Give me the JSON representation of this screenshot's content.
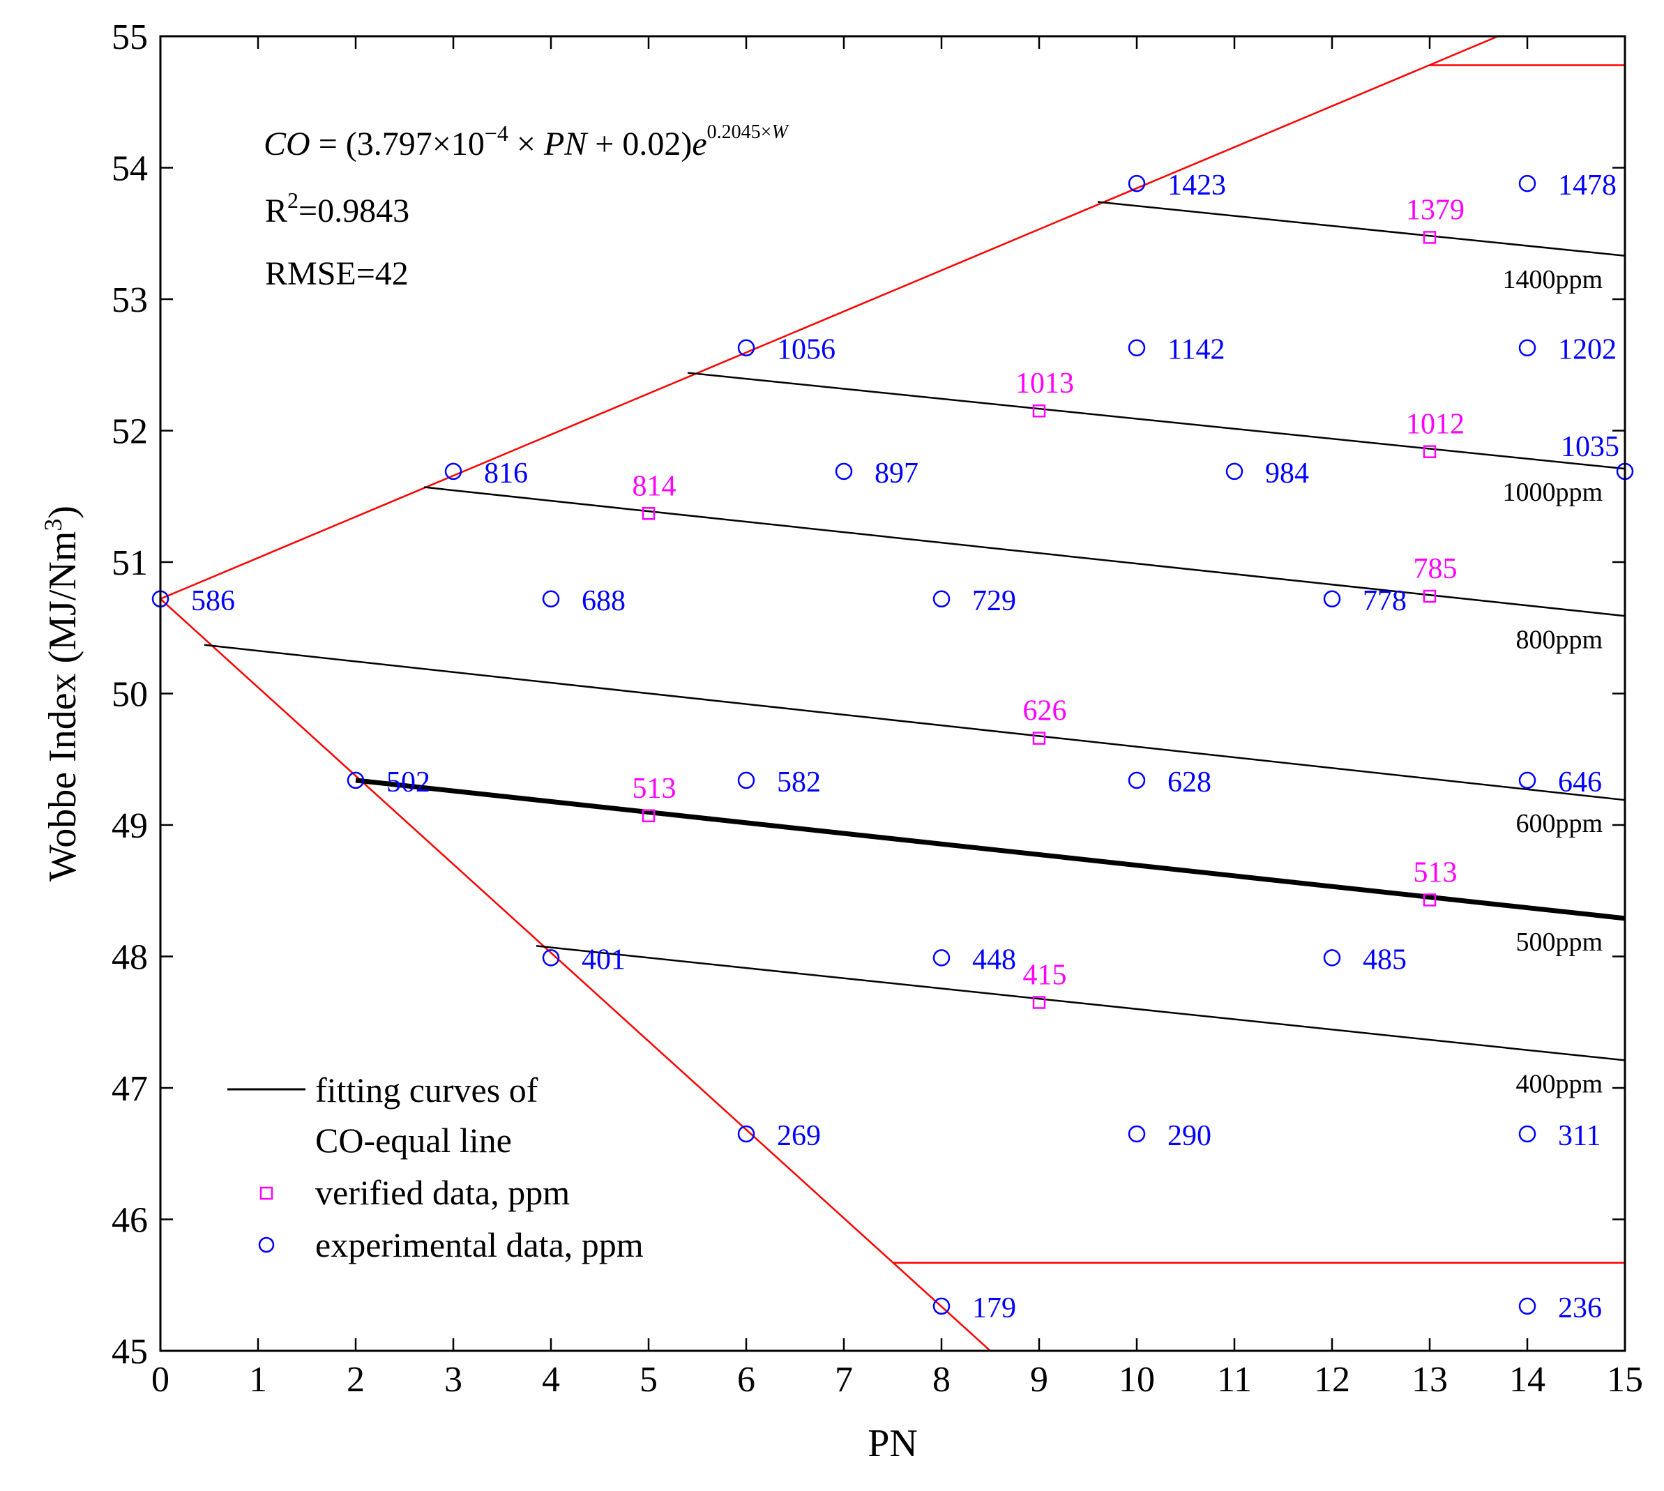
{
  "chart_data": {
    "type": "scatter",
    "xlabel": "PN",
    "ylabel": "Wobbe Index (MJ/Nm³)",
    "xlim": [
      0,
      15
    ],
    "ylim": [
      45,
      55
    ],
    "xticks": [
      0,
      1,
      2,
      3,
      4,
      5,
      6,
      7,
      8,
      9,
      10,
      11,
      12,
      13,
      14,
      15
    ],
    "yticks": [
      45,
      46,
      47,
      48,
      49,
      50,
      51,
      52,
      53,
      54,
      55
    ],
    "grid": false,
    "annotations": {
      "equation": "CO = (3.797×10⁻⁴ × PN + 0.02)e^(0.2045×W)",
      "r2": "R²=0.9843",
      "rmse": "RMSE=42"
    },
    "colors": {
      "experimental": "#0000ff",
      "verified": "#ff00ff",
      "boundary": "#ff0000",
      "fit": "#000000"
    },
    "experimental": [
      {
        "x": 0,
        "y": 50.72,
        "label": "586"
      },
      {
        "x": 2,
        "y": 49.34,
        "label": "502"
      },
      {
        "x": 3,
        "y": 51.69,
        "label": "816"
      },
      {
        "x": 4,
        "y": 50.72,
        "label": "688"
      },
      {
        "x": 4,
        "y": 47.99,
        "label": "401"
      },
      {
        "x": 6,
        "y": 52.63,
        "label": "1056"
      },
      {
        "x": 6,
        "y": 49.34,
        "label": "582"
      },
      {
        "x": 6,
        "y": 46.65,
        "label": "269"
      },
      {
        "x": 7,
        "y": 51.69,
        "label": "897"
      },
      {
        "x": 8,
        "y": 50.72,
        "label": "729"
      },
      {
        "x": 8,
        "y": 47.99,
        "label": "448"
      },
      {
        "x": 8,
        "y": 45.34,
        "label": "179"
      },
      {
        "x": 10,
        "y": 53.88,
        "label": "1423"
      },
      {
        "x": 10,
        "y": 52.63,
        "label": "1142"
      },
      {
        "x": 10,
        "y": 49.34,
        "label": "628"
      },
      {
        "x": 10,
        "y": 46.65,
        "label": "290"
      },
      {
        "x": 11,
        "y": 51.69,
        "label": "984"
      },
      {
        "x": 12,
        "y": 50.72,
        "label": "778"
      },
      {
        "x": 12,
        "y": 47.99,
        "label": "485"
      },
      {
        "x": 14,
        "y": 53.88,
        "label": "1478"
      },
      {
        "x": 14,
        "y": 52.63,
        "label": "1202"
      },
      {
        "x": 14,
        "y": 49.34,
        "label": "646"
      },
      {
        "x": 14,
        "y": 46.65,
        "label": "311"
      },
      {
        "x": 14,
        "y": 45.34,
        "label": "236"
      },
      {
        "x": 15,
        "y": 51.69,
        "label": "1035"
      }
    ],
    "verified": [
      {
        "x": 13,
        "y": 53.47,
        "label": "1379"
      },
      {
        "x": 9,
        "y": 52.15,
        "label": "1013"
      },
      {
        "x": 13,
        "y": 51.84,
        "label": "1012"
      },
      {
        "x": 5,
        "y": 51.37,
        "label": "814"
      },
      {
        "x": 13,
        "y": 50.74,
        "label": "785"
      },
      {
        "x": 9,
        "y": 49.66,
        "label": "626"
      },
      {
        "x": 5,
        "y": 49.07,
        "label": "513"
      },
      {
        "x": 13,
        "y": 48.43,
        "label": "513"
      },
      {
        "x": 9,
        "y": 47.65,
        "label": "415"
      }
    ],
    "fitting_curves": [
      {
        "ppm_label": "1400ppm",
        "x": [
          9.6,
          15
        ],
        "y": [
          53.74,
          53.33
        ],
        "bold": false
      },
      {
        "ppm_label": "1000ppm",
        "x": [
          5.4,
          15
        ],
        "y": [
          52.44,
          51.71
        ],
        "bold": false
      },
      {
        "ppm_label": "800ppm",
        "x": [
          2.7,
          15
        ],
        "y": [
          51.57,
          50.59
        ],
        "bold": false
      },
      {
        "ppm_label": "600ppm",
        "x": [
          0.45,
          15
        ],
        "y": [
          50.37,
          49.19
        ],
        "bold": false
      },
      {
        "ppm_label": "500ppm",
        "x": [
          2,
          15
        ],
        "y": [
          49.34,
          48.29
        ],
        "bold": true
      },
      {
        "ppm_label": "400ppm",
        "x": [
          3.85,
          15
        ],
        "y": [
          48.08,
          47.21
        ],
        "bold": false
      }
    ],
    "boundary_lines": [
      {
        "x": [
          0,
          13.7
        ],
        "y": [
          50.72,
          55.0
        ]
      },
      {
        "x": [
          13,
          15
        ],
        "y": [
          54.78,
          54.78
        ]
      },
      {
        "x": [
          0,
          8.5
        ],
        "y": [
          50.72,
          45.0
        ]
      },
      {
        "x": [
          7.5,
          15
        ],
        "y": [
          45.67,
          45.67
        ]
      }
    ],
    "legend": {
      "position": "bottom-left",
      "entries": [
        {
          "symbol": "line",
          "lines": [
            "fitting curves of",
            "CO-equal line"
          ]
        },
        {
          "symbol": "square",
          "lines": [
            "verified data, ppm"
          ]
        },
        {
          "symbol": "circle",
          "lines": [
            "experimental data, ppm"
          ]
        }
      ]
    }
  }
}
